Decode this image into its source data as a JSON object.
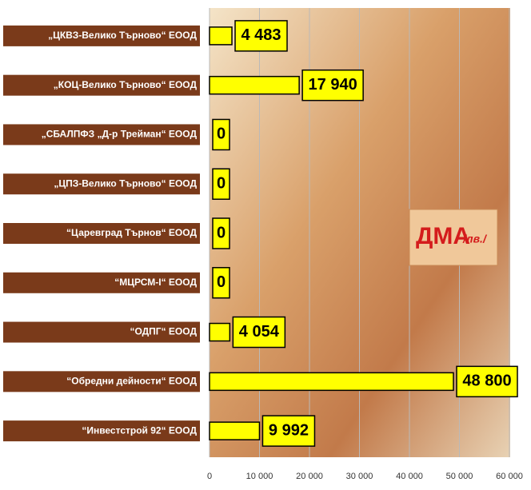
{
  "chart_data": {
    "type": "bar",
    "orientation": "horizontal",
    "annotation": "ДМА",
    "annotation_unit": "/лв./",
    "categories": [
      "„ЦКВЗ-Велико Търново“ ЕООД",
      "„КОЦ-Велико Търново“ ЕООД",
      "„СБАЛПФЗ „Д-р Трейман“ ЕООД",
      "„ЦПЗ-Велико Търново“ ЕООД",
      "“Царевград Търнов“ ЕООД",
      "“МЦРСМ-I“ ЕООД",
      "“ОДПГ“ ЕООД",
      "“Обредни дейности“ ЕООД",
      "“Инвестстрой 92“ ЕООД"
    ],
    "values": [
      4483,
      17940,
      0,
      0,
      0,
      0,
      4054,
      48800,
      9992
    ],
    "value_labels": [
      "4 483",
      "17 940",
      "0",
      "0",
      "0",
      "0",
      "4 054",
      "48 800",
      "9 992"
    ],
    "color": "#ffff00",
    "xlim": [
      0,
      60000
    ],
    "xticks": [
      0,
      {
        "value": 10000,
        "label": "10 000"
      },
      {
        "value": 20000,
        "label": "20 000"
      },
      {
        "value": 30000,
        "label": "30 000"
      },
      {
        "value": 40000,
        "label": "40 000"
      },
      {
        "value": 50000,
        "label": "50 000"
      },
      {
        "value": 60000,
        "label": "60 000"
      }
    ],
    "grid": true
  }
}
